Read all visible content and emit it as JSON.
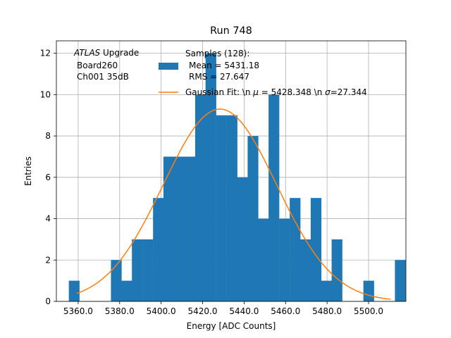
{
  "chart_data": {
    "type": "bar",
    "title": "Run 748",
    "xlabel": "Energy [ADC Counts]",
    "ylabel": "Entries",
    "xlim": [
      5349.5,
      5518.0
    ],
    "ylim": [
      0,
      12.6
    ],
    "grid": true,
    "bin_width": 5.07,
    "bins": [
      {
        "x0": 5355.5,
        "count": 1
      },
      {
        "x0": 5375.8,
        "count": 2
      },
      {
        "x0": 5380.9,
        "count": 1
      },
      {
        "x0": 5385.9,
        "count": 3
      },
      {
        "x0": 5391.0,
        "count": 3
      },
      {
        "x0": 5396.1,
        "count": 5
      },
      {
        "x0": 5401.1,
        "count": 7
      },
      {
        "x0": 5406.2,
        "count": 7
      },
      {
        "x0": 5411.3,
        "count": 7
      },
      {
        "x0": 5416.4,
        "count": 10
      },
      {
        "x0": 5421.4,
        "count": 12
      },
      {
        "x0": 5426.5,
        "count": 9
      },
      {
        "x0": 5431.6,
        "count": 9
      },
      {
        "x0": 5436.6,
        "count": 6
      },
      {
        "x0": 5441.7,
        "count": 8
      },
      {
        "x0": 5446.8,
        "count": 4
      },
      {
        "x0": 5451.8,
        "count": 10
      },
      {
        "x0": 5456.9,
        "count": 4
      },
      {
        "x0": 5462.0,
        "count": 5
      },
      {
        "x0": 5467.0,
        "count": 3
      },
      {
        "x0": 5472.1,
        "count": 5
      },
      {
        "x0": 5477.2,
        "count": 1
      },
      {
        "x0": 5482.2,
        "count": 3
      },
      {
        "x0": 5497.5,
        "count": 1
      },
      {
        "x0": 5512.7,
        "count": 2
      }
    ],
    "fit": {
      "mu": 5428.348,
      "sigma": 27.344,
      "amplitude": 9.3,
      "x_range": [
        5359.3,
        5510.6
      ]
    },
    "x_ticks": [
      "5360.0",
      "5380.0",
      "5400.0",
      "5420.0",
      "5440.0",
      "5460.0",
      "5480.0",
      "5500.0"
    ],
    "x_tick_values": [
      5360,
      5380,
      5400,
      5420,
      5440,
      5460,
      5480,
      5500
    ],
    "y_ticks": [
      "0",
      "2",
      "4",
      "6",
      "8",
      "10",
      "12"
    ],
    "y_tick_values": [
      0,
      2,
      4,
      6,
      8,
      10,
      12
    ],
    "colors": {
      "hist": "#1f77b4",
      "fit": "#ff7f0e",
      "grid": "#b0b0b0"
    },
    "annotation": {
      "atlas": "ATLAS",
      "upgrade": " Upgrade",
      "board": "Board260",
      "channel": "Ch001 35dB"
    },
    "legend": {
      "hist_line1": "Samples (128):",
      "hist_line2": "Mean = 5431.18",
      "hist_line3": "RMS = 27.647",
      "fit_prefix": "Gaussian Fit: \\n ",
      "fit_mu_sym": "μ",
      "fit_mu_text": " = 5428.348 \\n ",
      "fit_sigma_sym": "σ",
      "fit_sigma_text": "=27.344"
    }
  }
}
